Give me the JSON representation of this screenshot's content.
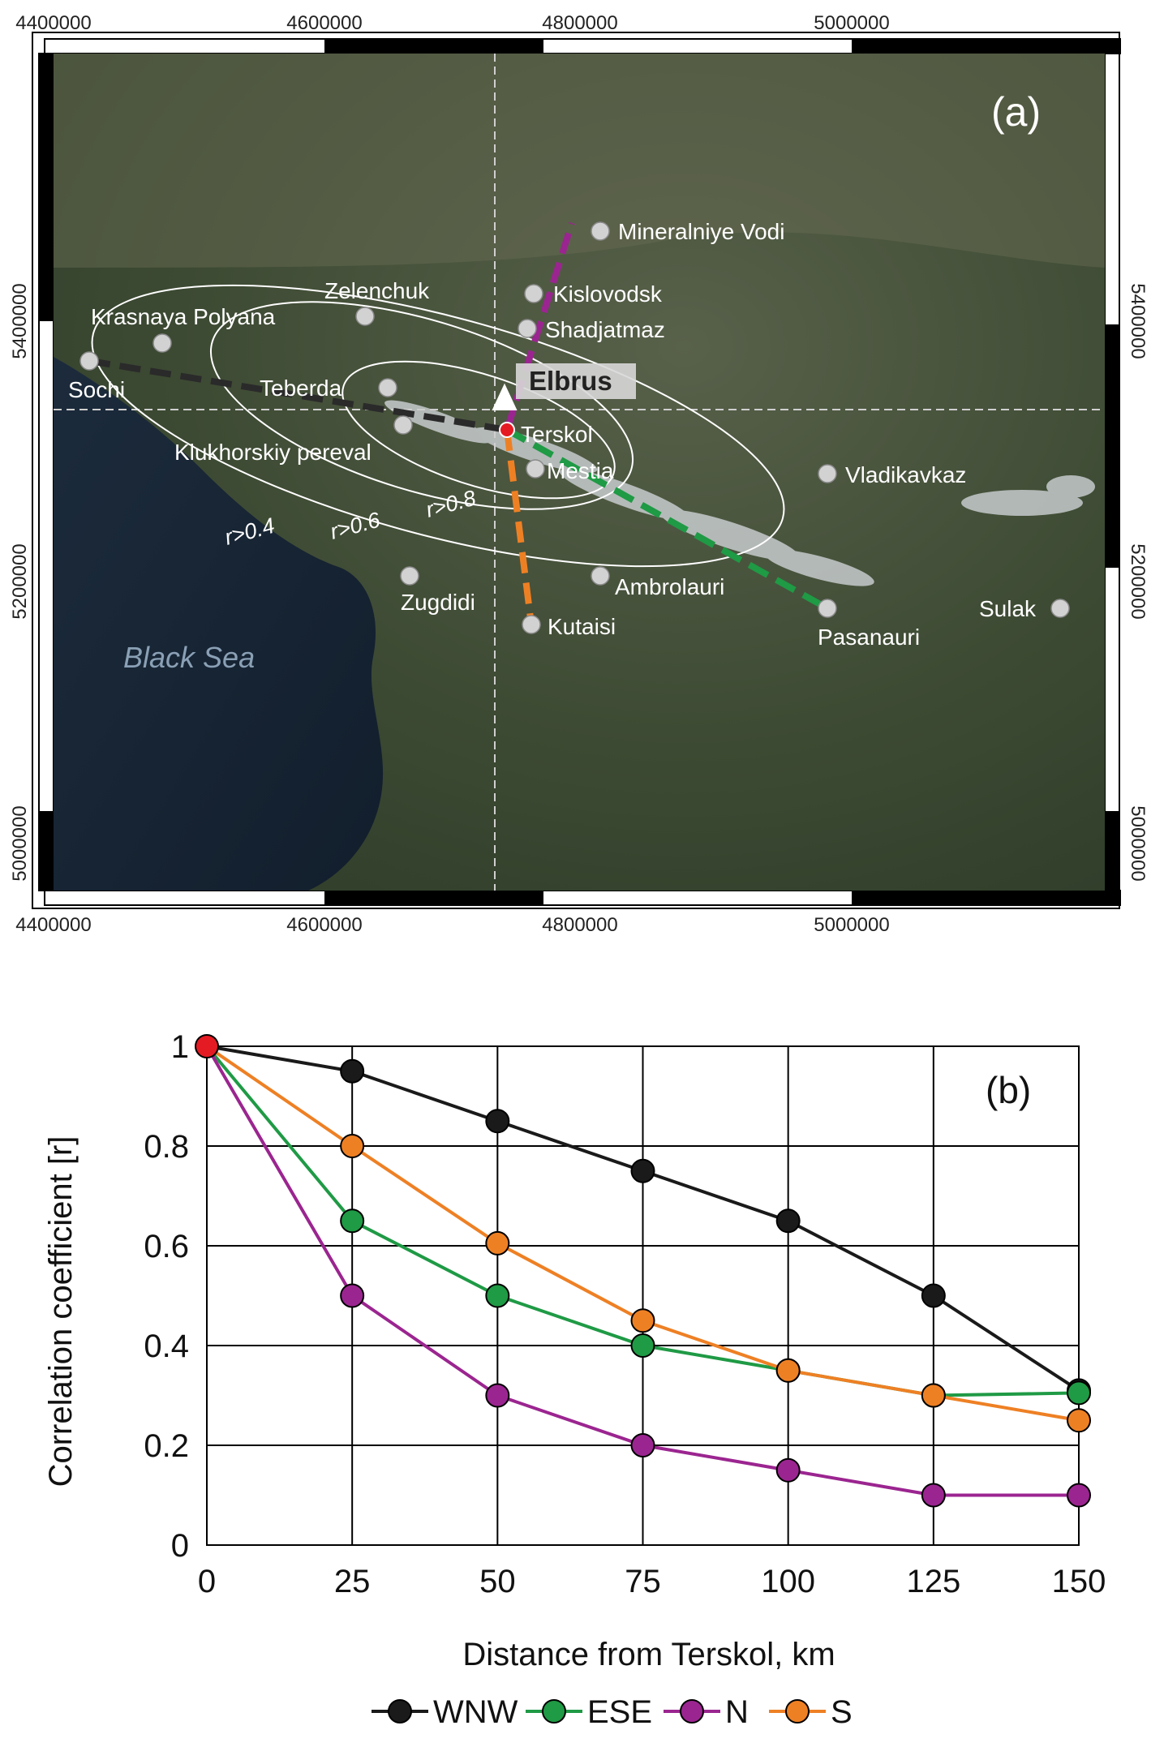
{
  "map": {
    "panel_label": "(a)",
    "x_ticks": [
      "4400000",
      "4600000",
      "4800000",
      "5000000"
    ],
    "y_ticks": [
      "5400000",
      "5200000",
      "5000000"
    ],
    "sea_label": "Black Sea",
    "summit_label": "Elbrus",
    "colors": {
      "WNW": "#2a2a2a",
      "ESE": "#1f9a45",
      "N": "#9b2590",
      "S": "#ee8024",
      "terskol": "#e51b23",
      "ellipse": "#ffffff"
    },
    "places": [
      {
        "key": "mineralniye",
        "label": "Mineralniye Vodi"
      },
      {
        "key": "kislovodsk",
        "label": "Kislovodsk"
      },
      {
        "key": "shadjatmaz",
        "label": "Shadjatmaz"
      },
      {
        "key": "zelenchuk",
        "label": "Zelenchuk"
      },
      {
        "key": "krasnaya",
        "label": "Krasnaya Polyana"
      },
      {
        "key": "sochi",
        "label": "Sochi"
      },
      {
        "key": "teberda",
        "label": "Teberda"
      },
      {
        "key": "klukhor",
        "label": "Klukhorskiy pereval"
      },
      {
        "key": "terskol",
        "label": "Terskol"
      },
      {
        "key": "mestia",
        "label": "Mestia"
      },
      {
        "key": "vladikavkaz",
        "label": "Vladikavkaz"
      },
      {
        "key": "ambrolauri",
        "label": "Ambrolauri"
      },
      {
        "key": "zugdidi",
        "label": "Zugdidi"
      },
      {
        "key": "kutaisi",
        "label": "Kutaisi"
      },
      {
        "key": "pasanauri",
        "label": "Pasanauri"
      },
      {
        "key": "sulak",
        "label": "Sulak"
      }
    ],
    "contours": [
      "r>0.4",
      "r>0.6",
      "r>0.8"
    ]
  },
  "chart_data": {
    "type": "line",
    "panel_label": "(b)",
    "x": [
      0,
      25,
      50,
      75,
      100,
      125,
      150
    ],
    "xlabel": "Distance from Terskol, km",
    "ylabel": "Correlation coefficient [r]",
    "xlim": [
      0,
      150
    ],
    "ylim": [
      0,
      1
    ],
    "x_ticks": [
      "0",
      "25",
      "50",
      "75",
      "100",
      "125",
      "150"
    ],
    "y_ticks": [
      "0",
      "0.2",
      "0.4",
      "0.6",
      "0.8",
      "1"
    ],
    "grid": true,
    "legend_position": "bottom",
    "series": [
      {
        "name": "WNW",
        "color": "#1a1a1a",
        "values": [
          1.0,
          0.95,
          0.85,
          0.75,
          0.65,
          0.5,
          0.31
        ]
      },
      {
        "name": "ESE",
        "color": "#1f9a45",
        "values": [
          1.0,
          0.65,
          0.5,
          0.4,
          0.35,
          0.3,
          0.305
        ]
      },
      {
        "name": "N",
        "color": "#9b2590",
        "values": [
          1.0,
          0.5,
          0.3,
          0.2,
          0.15,
          0.1,
          0.1
        ]
      },
      {
        "name": "S",
        "color": "#ee8024",
        "values": [
          1.0,
          0.8,
          0.605,
          0.45,
          0.35,
          0.3,
          0.25
        ]
      }
    ],
    "origin_marker_color": "#e51b23"
  }
}
